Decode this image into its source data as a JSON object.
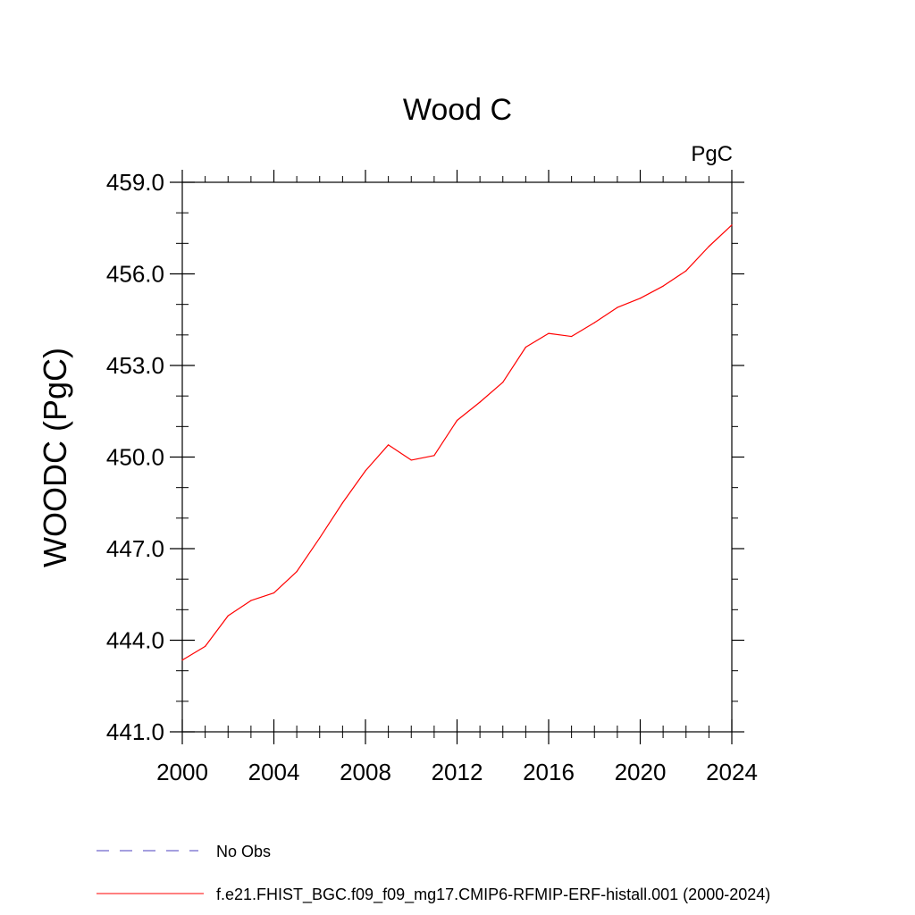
{
  "chart_data": {
    "type": "line",
    "title": "Wood C",
    "units_label": "PgC",
    "xlabel": "",
    "ylabel": "WOODC  (PgC)",
    "xlim": [
      2000,
      2024
    ],
    "ylim": [
      441.0,
      459.0
    ],
    "x_ticks": [
      2000,
      2004,
      2008,
      2012,
      2016,
      2020,
      2024
    ],
    "x_tick_labels": [
      "2000",
      "2004",
      "2008",
      "2012",
      "2016",
      "2020",
      "2024"
    ],
    "y_ticks": [
      441.0,
      444.0,
      447.0,
      450.0,
      453.0,
      456.0,
      459.0
    ],
    "y_tick_labels": [
      "441.0",
      "444.0",
      "447.0",
      "450.0",
      "453.0",
      "456.0",
      "459.0"
    ],
    "series": [
      {
        "name": "f.e21.FHIST_BGC.f09_f09_mg17.CMIP6-RFMIP-ERF-histall.001 (2000-2024)",
        "color": "#ff0000",
        "style": "solid",
        "x": [
          2000,
          2001,
          2002,
          2003,
          2004,
          2005,
          2006,
          2007,
          2008,
          2009,
          2010,
          2011,
          2012,
          2013,
          2014,
          2015,
          2016,
          2017,
          2018,
          2019,
          2020,
          2021,
          2022,
          2023,
          2024
        ],
        "values": [
          443.35,
          443.8,
          444.8,
          445.3,
          445.55,
          446.25,
          447.35,
          448.5,
          449.55,
          450.4,
          449.9,
          450.05,
          451.2,
          451.8,
          452.45,
          453.6,
          454.05,
          453.95,
          454.4,
          454.9,
          455.2,
          455.6,
          456.1,
          456.9,
          457.6
        ]
      }
    ],
    "legend": [
      {
        "label": "No Obs",
        "color": "#4b3fbf",
        "style": "dashed"
      },
      {
        "label": "f.e21.FHIST_BGC.f09_f09_mg17.CMIP6-RFMIP-ERF-histall.001 (2000-2024)",
        "color": "#ff0000",
        "style": "solid"
      }
    ]
  }
}
